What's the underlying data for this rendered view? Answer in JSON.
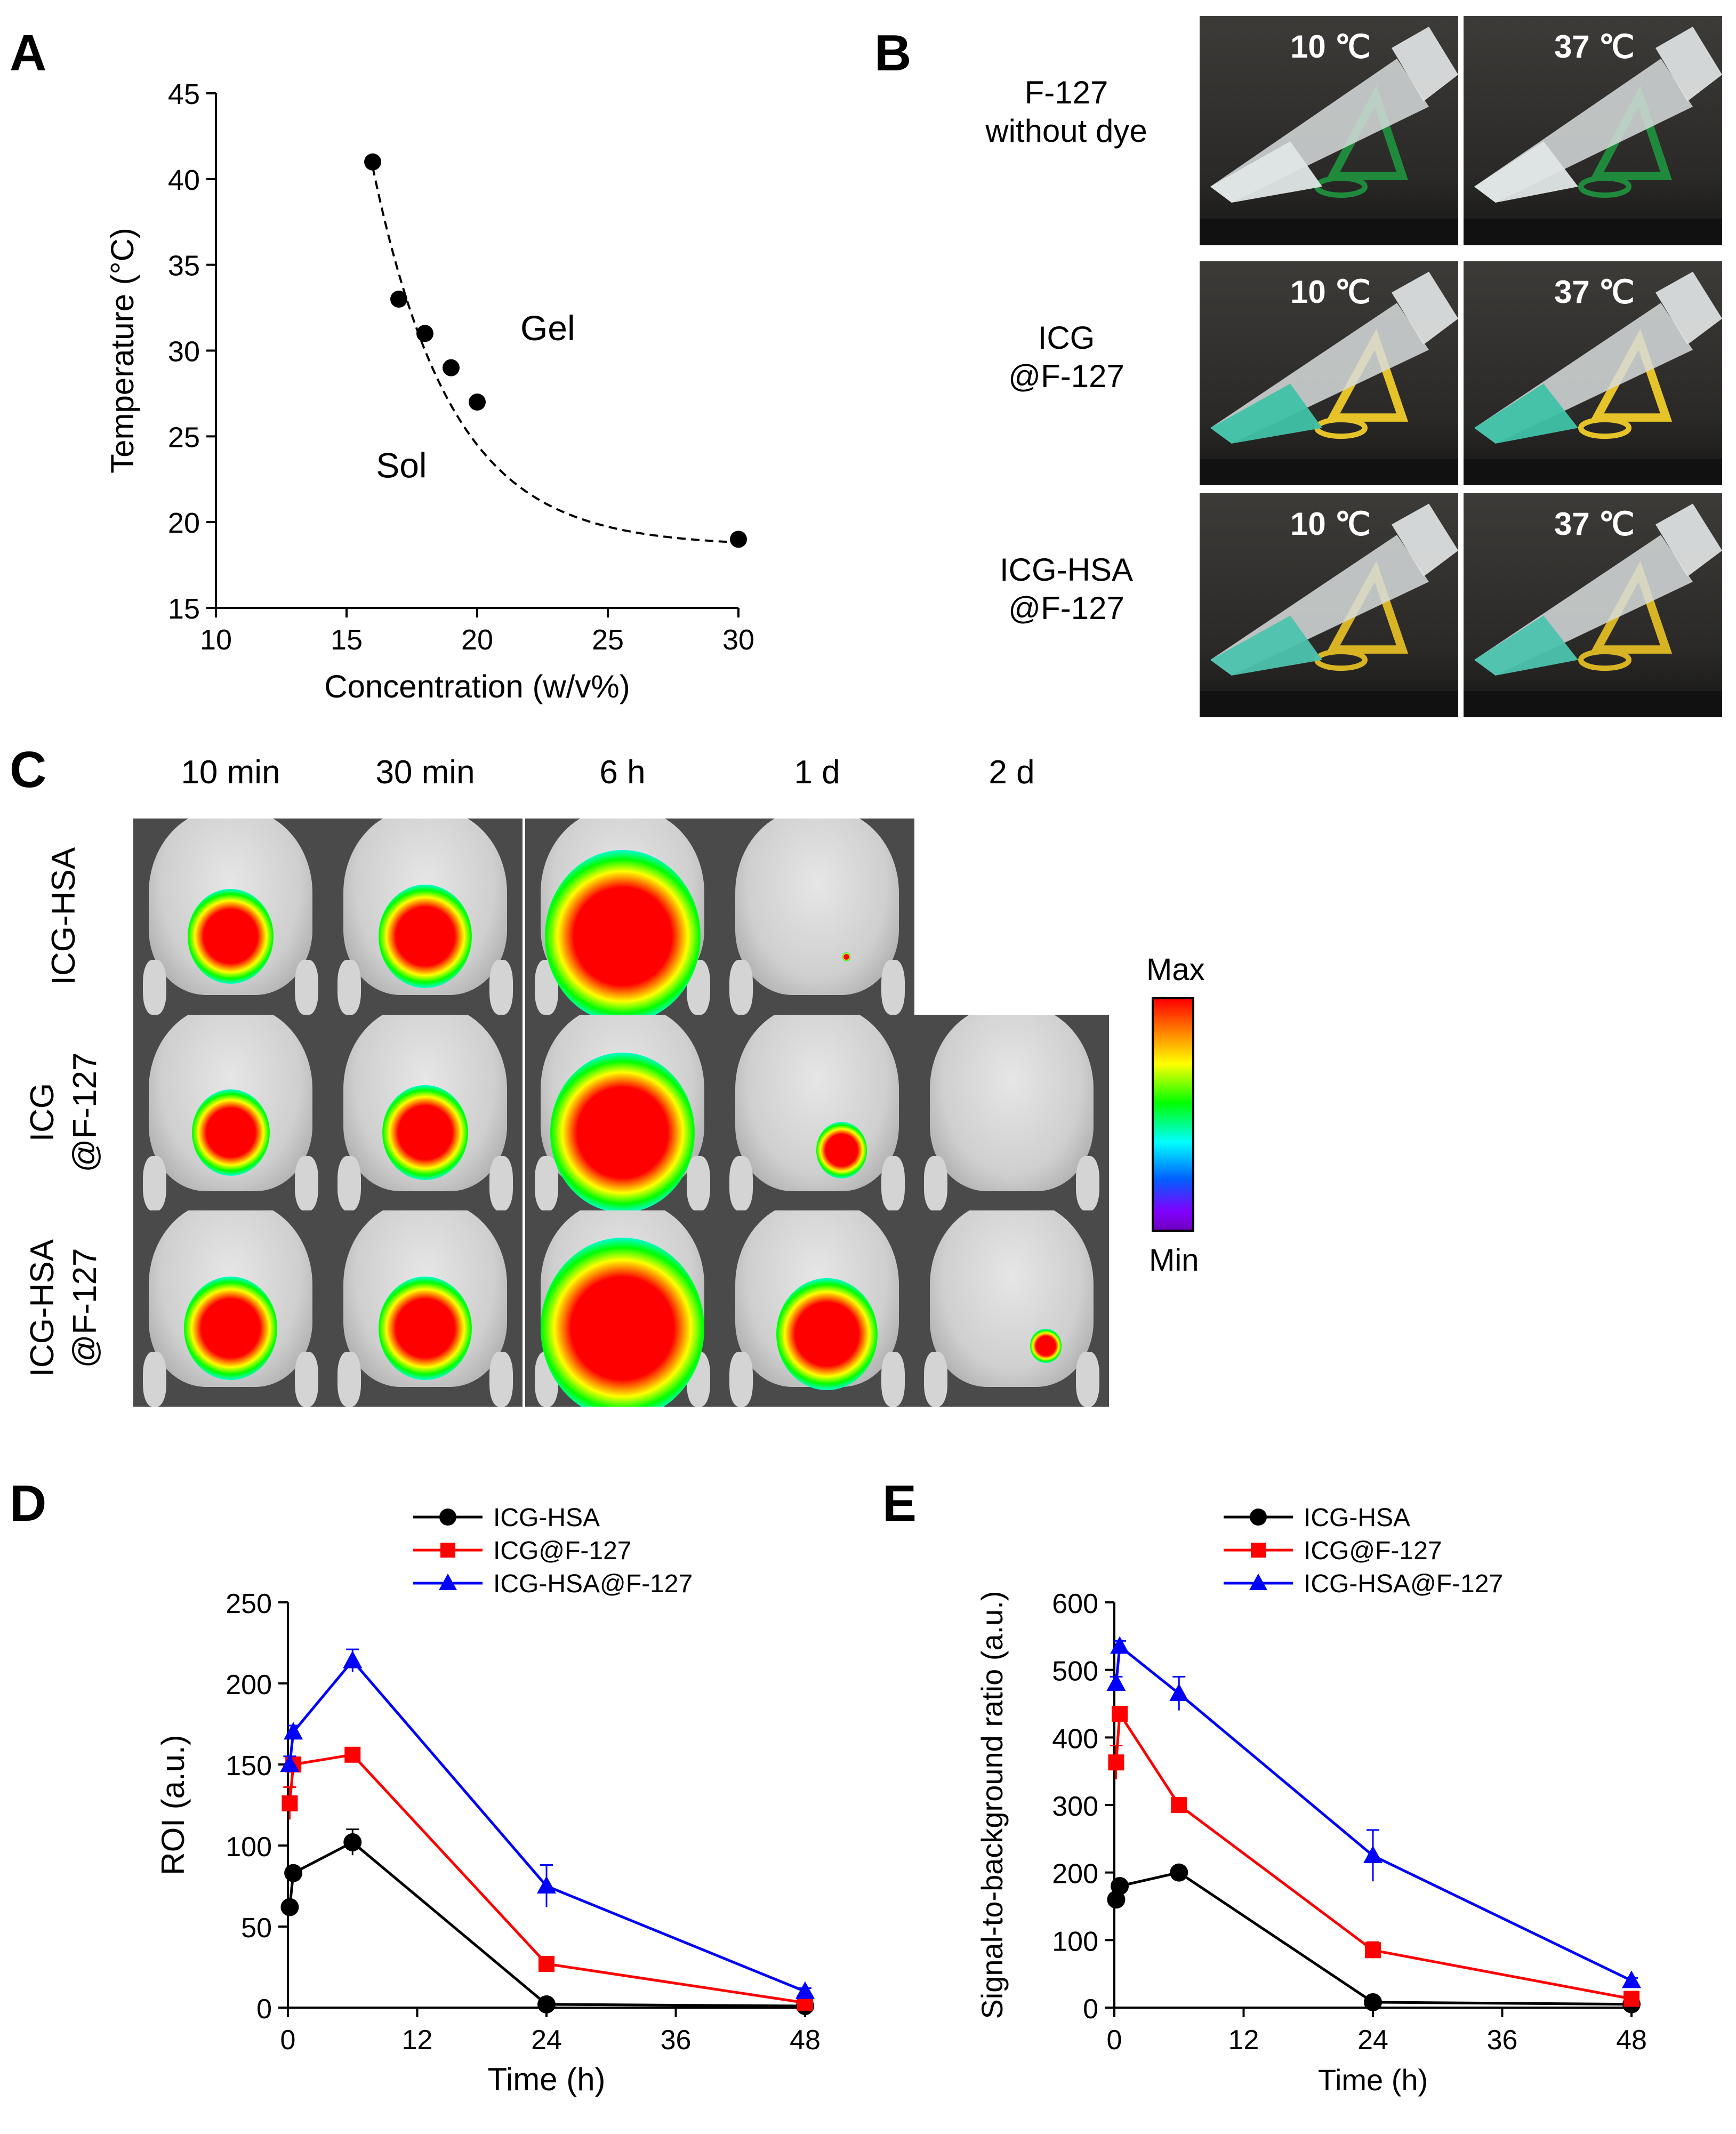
{
  "panels": {
    "A": "A",
    "B": "B",
    "C": "C",
    "D": "D",
    "E": "E"
  },
  "chart_data": [
    {
      "id": "A",
      "type": "scatter",
      "title": "",
      "xlabel": "Concentration (w/v%)",
      "ylabel": "Temperature (°C)",
      "xlim": [
        10,
        30
      ],
      "ylim": [
        15,
        45
      ],
      "xticks": [
        "10",
        "15",
        "20",
        "25",
        "30"
      ],
      "yticks": [
        "15",
        "20",
        "25",
        "30",
        "35",
        "40",
        "45"
      ],
      "x": [
        16,
        17,
        18,
        19,
        20,
        30
      ],
      "y": [
        41,
        33,
        31,
        29,
        27,
        19
      ],
      "fit": "dashed curve",
      "annotations": [
        "Gel",
        "Sol"
      ]
    },
    {
      "id": "D",
      "type": "line",
      "xlabel": "Time (h)",
      "ylabel": "ROI (a.u.)",
      "xlim": [
        0,
        48
      ],
      "ylim": [
        0,
        250
      ],
      "xticks": [
        "0",
        "12",
        "24",
        "36",
        "48"
      ],
      "yticks": [
        "0",
        "50",
        "100",
        "150",
        "200",
        "250"
      ],
      "series": [
        {
          "name": "ICG-HSA",
          "color": "#000000",
          "marker": "circle",
          "x": [
            0.17,
            0.5,
            6,
            24,
            48
          ],
          "values": [
            62,
            83,
            102,
            2,
            1
          ],
          "err": [
            3,
            3,
            8,
            1,
            1
          ]
        },
        {
          "name": "ICG@F-127",
          "color": "#ff0000",
          "marker": "square",
          "x": [
            0.17,
            0.5,
            6,
            24,
            48
          ],
          "values": [
            126,
            150,
            156,
            27,
            3
          ],
          "err": [
            10,
            4,
            3,
            3,
            1
          ]
        },
        {
          "name": "ICG-HSA@F-127",
          "color": "#0000ff",
          "marker": "triangle",
          "x": [
            0.17,
            0.5,
            6,
            24,
            48
          ],
          "values": [
            150,
            170,
            214,
            75,
            10
          ],
          "err": [
            5,
            4,
            7,
            13,
            2
          ]
        }
      ],
      "legend": "top-right"
    },
    {
      "id": "E",
      "type": "line",
      "xlabel": "Time (h)",
      "ylabel": "Signal-to-background ratio (a.u.)",
      "xlim": [
        0,
        48
      ],
      "ylim": [
        0,
        600
      ],
      "xticks": [
        "0",
        "12",
        "24",
        "36",
        "48"
      ],
      "yticks": [
        "0",
        "100",
        "200",
        "300",
        "400",
        "500",
        "600"
      ],
      "series": [
        {
          "name": "ICG-HSA",
          "color": "#000000",
          "marker": "circle",
          "x": [
            0.17,
            0.5,
            6,
            24,
            48
          ],
          "values": [
            160,
            180,
            200,
            8,
            5
          ],
          "err": [
            8,
            6,
            8,
            2,
            1
          ]
        },
        {
          "name": "ICG@F-127",
          "color": "#ff0000",
          "marker": "square",
          "x": [
            0.17,
            0.5,
            6,
            24,
            48
          ],
          "values": [
            363,
            435,
            300,
            85,
            13
          ],
          "err": [
            25,
            8,
            5,
            12,
            2
          ]
        },
        {
          "name": "ICG-HSA@F-127",
          "color": "#0000ff",
          "marker": "triangle",
          "x": [
            0.17,
            0.5,
            6,
            24,
            48
          ],
          "values": [
            480,
            535,
            465,
            225,
            40
          ],
          "err": [
            10,
            8,
            25,
            38,
            4
          ]
        }
      ],
      "legend": "top-right"
    }
  ],
  "panelB": {
    "rows": [
      "F-127\nwithout dye",
      "ICG\n@F-127",
      "ICG-HSA\n@F-127"
    ],
    "temps": [
      "10 ℃",
      "37 ℃"
    ],
    "liquid_colors": [
      "#dfe6e6",
      "#3fc2a8",
      "#4cc3ad"
    ],
    "stand_colors": [
      "#1f8a3c",
      "#e6c328",
      "#d8b424"
    ]
  },
  "panelC": {
    "times": [
      "10 min",
      "30 min",
      "6 h",
      "1 d",
      "2 d"
    ],
    "rows": [
      "ICG-HSA",
      "ICG\n@F-127",
      "ICG-HSA\n@F-127"
    ],
    "colorbar": {
      "max": "Max",
      "min": "Min"
    }
  }
}
